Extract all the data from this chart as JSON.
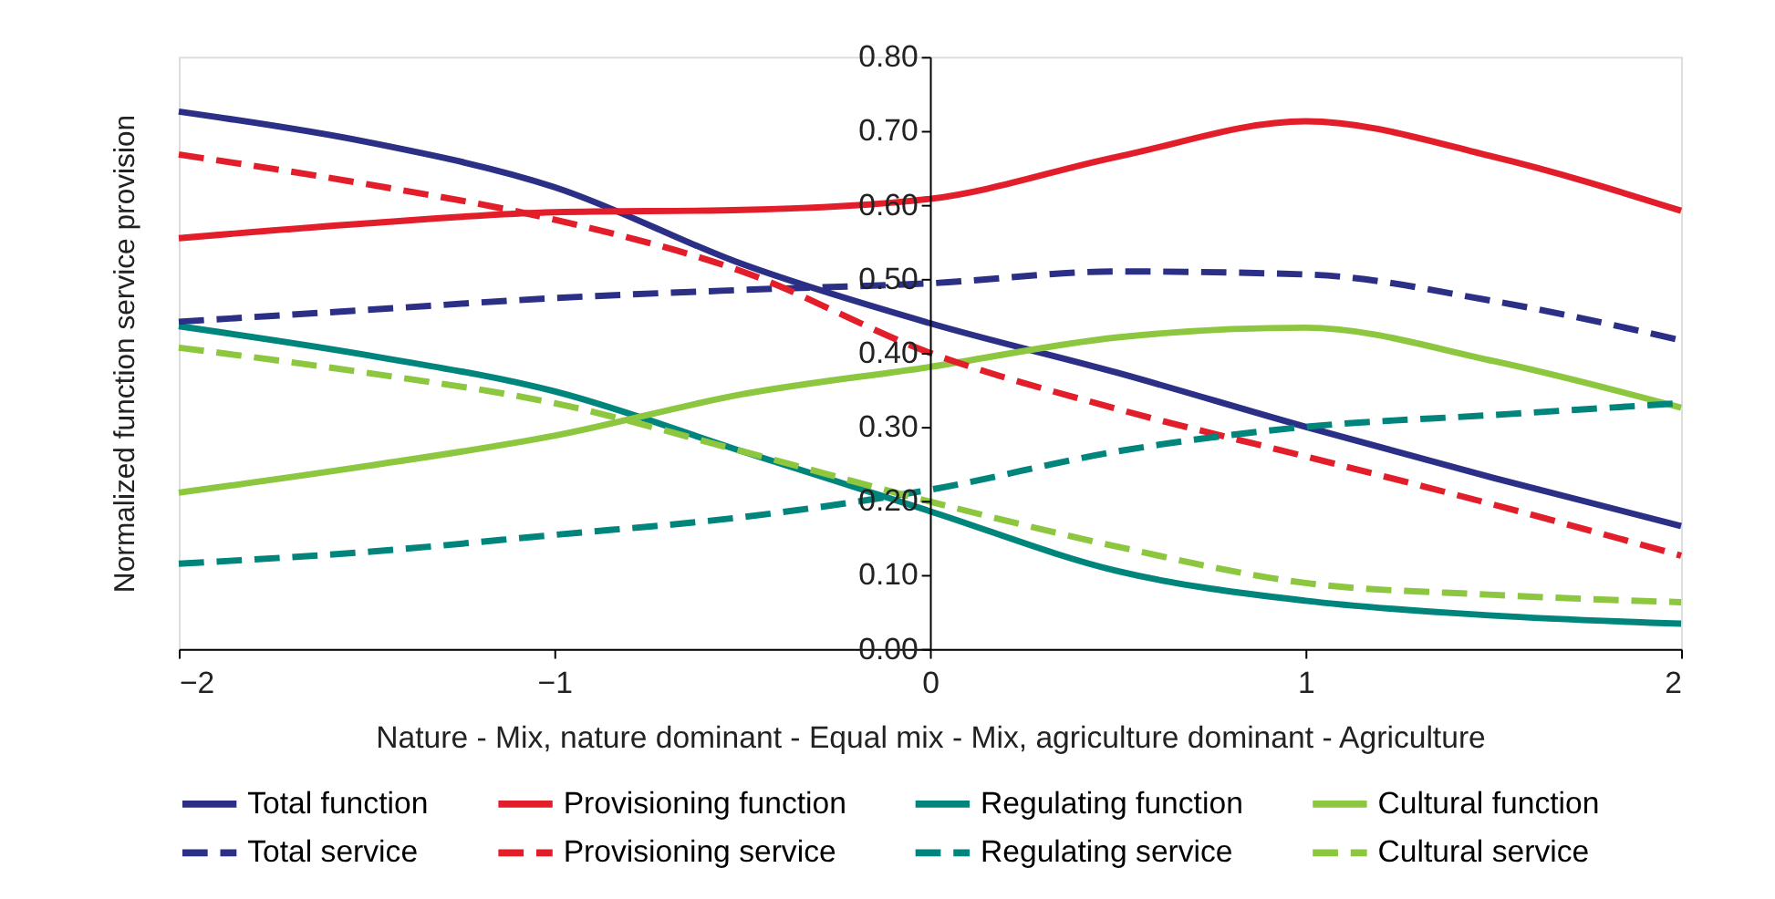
{
  "chart_data": {
    "type": "line",
    "ylabel": "Normalized function service provision",
    "xlabel": "Nature  -  Mix, nature dominant   -   Equal mix   -   Mix, agriculture dominant  -   Agriculture",
    "x": [
      -2,
      -1.5,
      -1,
      -0.5,
      0,
      0.5,
      1,
      1.5,
      2
    ],
    "series": [
      {
        "name": "Total function",
        "color": "#2b2f86",
        "line_style": "solid",
        "values": [
          0.726,
          0.685,
          0.624,
          0.52,
          0.44,
          0.373,
          0.3,
          0.231,
          0.166
        ]
      },
      {
        "name": "Provisioning function",
        "color": "#e31e2b",
        "line_style": "solid",
        "values": [
          0.555,
          0.575,
          0.59,
          0.593,
          0.608,
          0.665,
          0.713,
          0.665,
          0.592
        ]
      },
      {
        "name": "Regulating function",
        "color": "#00857d",
        "line_style": "solid",
        "values": [
          0.436,
          0.397,
          0.348,
          0.267,
          0.186,
          0.105,
          0.065,
          0.045,
          0.034
        ]
      },
      {
        "name": "Cultural function",
        "color": "#8dc63f",
        "line_style": "solid",
        "values": [
          0.211,
          0.247,
          0.288,
          0.344,
          0.381,
          0.421,
          0.434,
          0.389,
          0.326
        ]
      },
      {
        "name": "Total service",
        "color": "#2b2f86",
        "line_style": "dashed",
        "values": [
          0.442,
          0.458,
          0.474,
          0.485,
          0.494,
          0.51,
          0.506,
          0.47,
          0.417
        ]
      },
      {
        "name": "Provisioning service",
        "color": "#e31e2b",
        "line_style": "dashed",
        "values": [
          0.668,
          0.628,
          0.58,
          0.51,
          0.4,
          0.324,
          0.26,
          0.195,
          0.126
        ]
      },
      {
        "name": "Regulating service",
        "color": "#00857d",
        "line_style": "dashed",
        "values": [
          0.115,
          0.131,
          0.154,
          0.178,
          0.215,
          0.267,
          0.3,
          0.316,
          0.332
        ]
      },
      {
        "name": "Cultural service",
        "color": "#8dc63f",
        "line_style": "dashed",
        "values": [
          0.407,
          0.373,
          0.332,
          0.267,
          0.199,
          0.138,
          0.089,
          0.073,
          0.063
        ]
      }
    ],
    "xlim": [
      -2,
      2
    ],
    "xticks": [
      {
        "value": -2,
        "label": "−2"
      },
      {
        "value": -1,
        "label": "−1"
      },
      0,
      1,
      2
    ],
    "ylim": [
      0,
      0.8
    ],
    "yticks": [
      {
        "value": 0,
        "label": "0.00"
      },
      {
        "value": 0.1,
        "label": "0.10"
      },
      {
        "value": 0.2,
        "label": "0.20"
      },
      {
        "value": 0.3,
        "label": "0.30"
      },
      {
        "value": 0.4,
        "label": "0.40"
      },
      {
        "value": 0.5,
        "label": "0.50"
      },
      {
        "value": 0.6,
        "label": "0.60"
      },
      {
        "value": 0.7,
        "label": "0.70"
      },
      {
        "value": 0.8,
        "label": "0.80"
      }
    ],
    "grid": false,
    "legend": "bottom",
    "marker": "none"
  }
}
